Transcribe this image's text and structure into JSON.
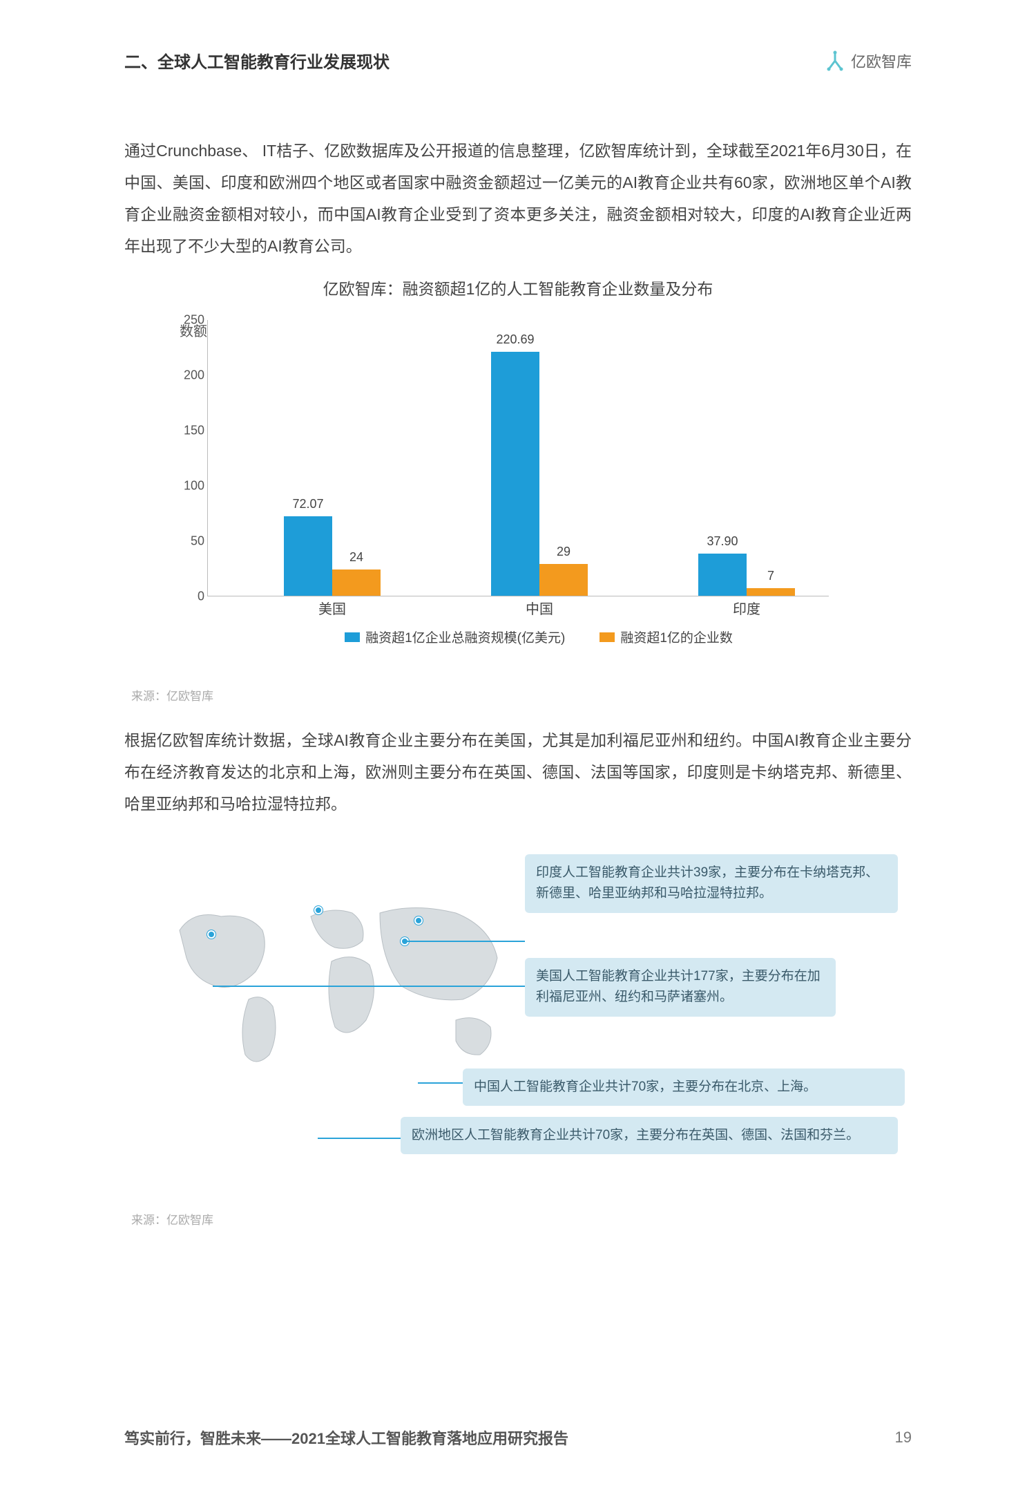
{
  "header": {
    "section_title": "二、全球人工智能教育行业发展现状",
    "logo_text": "亿欧智库"
  },
  "paragraph1": "通过Crunchbase、 IT桔子、亿欧数据库及公开报道的信息整理，亿欧智库统计到，全球截至2021年6月30日，在中国、美国、印度和欧洲四个地区或者国家中融资金额超过一亿美元的AI教育企业共有60家，欧洲地区单个AI教育企业融资金额相对较小，而中国AI教育企业受到了资本更多关注，融资金额相对较大，印度的AI教育企业近两年出现了不少大型的AI教育公司。",
  "chart": {
    "title": "亿欧智库：融资额超1亿的人工智能教育企业数量及分布",
    "yaxis_label": "数额",
    "categories": [
      "美国",
      "中国",
      "印度"
    ],
    "series1_values": [
      72.07,
      220.69,
      37.9
    ],
    "series1_labels": [
      "72.07",
      "220.69",
      "37.90"
    ],
    "series2_values": [
      24,
      29,
      7
    ],
    "series2_labels": [
      "24",
      "29",
      "7"
    ],
    "series1_color": "#1e9dd8",
    "series2_color": "#f39a1e",
    "yticks": [
      0,
      50,
      100,
      150,
      200,
      250
    ],
    "ymax": 250,
    "legend1": "融资超1亿企业总融资规模(亿美元)",
    "legend2": "融资超1亿的企业数",
    "source": "来源：亿欧智库"
  },
  "paragraph2": "根据亿欧智库统计数据，全球AI教育企业主要分布在美国，尤其是加利福尼亚州和纽约。中国AI教育企业主要分布在经济教育发达的北京和上海，欧洲则主要分布在英国、德国、法国等国家，印度则是卡纳塔克邦、新德里、哈里亚纳邦和马哈拉湿特拉邦。",
  "map": {
    "callouts": [
      "印度人工智能教育企业共计39家，主要分布在卡纳塔克邦、新德里、哈里亚纳邦和马哈拉湿特拉邦。",
      "美国人工智能教育企业共计177家，主要分布在加利福尼亚州、纽约和马萨诸塞州。",
      "中国人工智能教育企业共计70家，主要分布在北京、上海。",
      "欧洲地区人工智能教育企业共计70家，主要分布在英国、德国、法国和芬兰。"
    ],
    "source": "来源：亿欧智库",
    "callout_bg": "#d4e9f2",
    "callout_text": "#3a5a6a",
    "line_color": "#2aa3d9"
  },
  "footer": {
    "title": "笃实前行，智胜未来——2021全球人工智能教育落地应用研究报告",
    "page": "19"
  }
}
